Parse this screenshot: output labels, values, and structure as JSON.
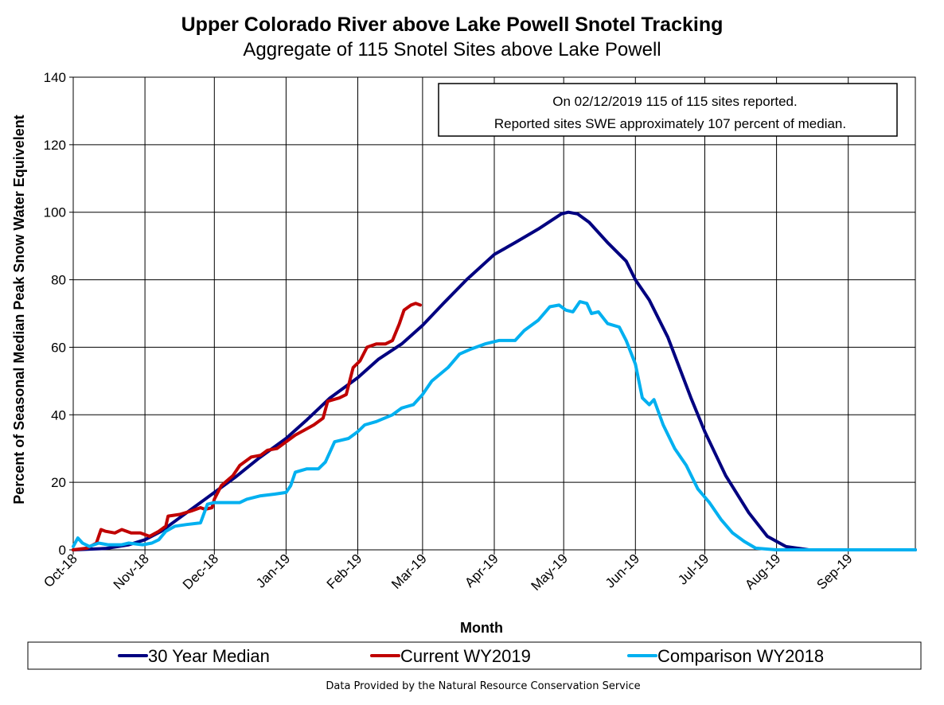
{
  "chart_data": {
    "type": "line",
    "title": "Upper Colorado River above Lake Powell Snotel Tracking",
    "subtitle": "Aggregate of 115 Snotel Sites above Lake Powell",
    "xlabel": "Month",
    "ylabel": "Percent of Seasonal Median Peak Snow Water Equivelent",
    "ylim": [
      0,
      140
    ],
    "yticks": [
      0,
      20,
      40,
      60,
      80,
      100,
      120,
      140
    ],
    "xlim": [
      "2018-10-01",
      "2019-09-30"
    ],
    "xtick_labels": [
      "Oct-18",
      "Nov-18",
      "Dec-18",
      "Jan-19",
      "Feb-19",
      "Mar-19",
      "Apr-19",
      "May-19",
      "Jun-19",
      "Jul-19",
      "Aug-19",
      "Sep-19"
    ],
    "xtick_dates": [
      "2018-10-01",
      "2018-11-01",
      "2018-12-01",
      "2019-01-01",
      "2019-02-01",
      "2019-03-01",
      "2019-04-01",
      "2019-05-01",
      "2019-06-01",
      "2019-07-01",
      "2019-08-01",
      "2019-09-01"
    ],
    "grid": true,
    "annotation": [
      "On 02/12/2019 115 of 115 sites reported.",
      "Reported sites SWE approximately  107 percent of median."
    ],
    "legend_position": "bottom",
    "series": [
      {
        "name": "30 Year Median",
        "color": "#000080",
        "points": [
          [
            "2018-10-01",
            0
          ],
          [
            "2018-10-15",
            0.4
          ],
          [
            "2018-10-25",
            1.5
          ],
          [
            "2018-11-01",
            3
          ],
          [
            "2018-11-08",
            5.5
          ],
          [
            "2018-11-15",
            9
          ],
          [
            "2018-11-22",
            12.5
          ],
          [
            "2018-12-01",
            17
          ],
          [
            "2018-12-10",
            21.5
          ],
          [
            "2018-12-20",
            27
          ],
          [
            "2019-01-01",
            33
          ],
          [
            "2019-01-10",
            38.5
          ],
          [
            "2019-01-20",
            45
          ],
          [
            "2019-02-01",
            51
          ],
          [
            "2019-02-10",
            56.5
          ],
          [
            "2019-02-20",
            61
          ],
          [
            "2019-03-01",
            66.5
          ],
          [
            "2019-03-10",
            73
          ],
          [
            "2019-03-20",
            80
          ],
          [
            "2019-04-01",
            87.5
          ],
          [
            "2019-04-10",
            91
          ],
          [
            "2019-04-20",
            95
          ],
          [
            "2019-04-30",
            99.5
          ],
          [
            "2019-05-03",
            100
          ],
          [
            "2019-05-07",
            99.5
          ],
          [
            "2019-05-12",
            97
          ],
          [
            "2019-05-20",
            91
          ],
          [
            "2019-05-28",
            85.5
          ],
          [
            "2019-06-01",
            80
          ],
          [
            "2019-06-07",
            74
          ],
          [
            "2019-06-15",
            63
          ],
          [
            "2019-06-25",
            45
          ],
          [
            "2019-07-01",
            35
          ],
          [
            "2019-07-10",
            22
          ],
          [
            "2019-07-20",
            11
          ],
          [
            "2019-07-28",
            4
          ],
          [
            "2019-08-05",
            1
          ],
          [
            "2019-08-15",
            0
          ],
          [
            "2019-09-30",
            0
          ]
        ]
      },
      {
        "name": "Current WY2019",
        "color": "#C00000",
        "points": [
          [
            "2018-10-01",
            0
          ],
          [
            "2018-10-07",
            0.5
          ],
          [
            "2018-10-11",
            2
          ],
          [
            "2018-10-13",
            6
          ],
          [
            "2018-10-15",
            5.5
          ],
          [
            "2018-10-19",
            5
          ],
          [
            "2018-10-22",
            6
          ],
          [
            "2018-10-26",
            5
          ],
          [
            "2018-10-30",
            5
          ],
          [
            "2018-11-03",
            4
          ],
          [
            "2018-11-07",
            5.5
          ],
          [
            "2018-11-10",
            7
          ],
          [
            "2018-11-11",
            10
          ],
          [
            "2018-11-16",
            10.5
          ],
          [
            "2018-11-21",
            11.5
          ],
          [
            "2018-11-25",
            12.5
          ],
          [
            "2018-11-27",
            12
          ],
          [
            "2018-11-30",
            12.5
          ],
          [
            "2018-12-01",
            15
          ],
          [
            "2018-12-04",
            19
          ],
          [
            "2018-12-09",
            22
          ],
          [
            "2018-12-12",
            25
          ],
          [
            "2018-12-17",
            27.5
          ],
          [
            "2018-12-21",
            28
          ],
          [
            "2018-12-24",
            29.5
          ],
          [
            "2018-12-28",
            30
          ],
          [
            "2019-01-01",
            32
          ],
          [
            "2019-01-05",
            34
          ],
          [
            "2019-01-09",
            35.5
          ],
          [
            "2019-01-13",
            37
          ],
          [
            "2019-01-17",
            39
          ],
          [
            "2019-01-19",
            44
          ],
          [
            "2019-01-24",
            45
          ],
          [
            "2019-01-27",
            46
          ],
          [
            "2019-01-30",
            54
          ],
          [
            "2019-02-02",
            56
          ],
          [
            "2019-02-05",
            60
          ],
          [
            "2019-02-09",
            61
          ],
          [
            "2019-02-13",
            61
          ],
          [
            "2019-02-16",
            62
          ],
          [
            "2019-02-19",
            67
          ],
          [
            "2019-02-21",
            71
          ],
          [
            "2019-02-24",
            72.5
          ],
          [
            "2019-02-26",
            73
          ],
          [
            "2019-02-28",
            72.5
          ]
        ]
      },
      {
        "name": "Comparison WY2018",
        "color": "#00B0F0",
        "points": [
          [
            "2018-10-01",
            1
          ],
          [
            "2018-10-03",
            3.5
          ],
          [
            "2018-10-05",
            2
          ],
          [
            "2018-10-08",
            1
          ],
          [
            "2018-10-12",
            2
          ],
          [
            "2018-10-16",
            1.5
          ],
          [
            "2018-10-22",
            1.5
          ],
          [
            "2018-10-25",
            2
          ],
          [
            "2018-10-31",
            1.5
          ],
          [
            "2018-11-04",
            2
          ],
          [
            "2018-11-07",
            3
          ],
          [
            "2018-11-10",
            5.5
          ],
          [
            "2018-11-14",
            7
          ],
          [
            "2018-11-19",
            7.5
          ],
          [
            "2018-11-25",
            8
          ],
          [
            "2018-11-28",
            13.5
          ],
          [
            "2018-12-01",
            14
          ],
          [
            "2018-12-07",
            14
          ],
          [
            "2018-12-12",
            14
          ],
          [
            "2018-12-15",
            15
          ],
          [
            "2018-12-21",
            16
          ],
          [
            "2018-12-27",
            16.5
          ],
          [
            "2019-01-01",
            17
          ],
          [
            "2019-01-03",
            19
          ],
          [
            "2019-01-05",
            23
          ],
          [
            "2019-01-10",
            24
          ],
          [
            "2019-01-15",
            24
          ],
          [
            "2019-01-18",
            26
          ],
          [
            "2019-01-22",
            32
          ],
          [
            "2019-01-28",
            33
          ],
          [
            "2019-02-01",
            35
          ],
          [
            "2019-02-04",
            37
          ],
          [
            "2019-02-09",
            38
          ],
          [
            "2019-02-16",
            40
          ],
          [
            "2019-02-20",
            42
          ],
          [
            "2019-02-25",
            43
          ],
          [
            "2019-03-01",
            46
          ],
          [
            "2019-03-05",
            50
          ],
          [
            "2019-03-12",
            54
          ],
          [
            "2019-03-17",
            58
          ],
          [
            "2019-03-22",
            59.5
          ],
          [
            "2019-03-28",
            61
          ],
          [
            "2019-04-03",
            62
          ],
          [
            "2019-04-10",
            62
          ],
          [
            "2019-04-14",
            65
          ],
          [
            "2019-04-20",
            68
          ],
          [
            "2019-04-25",
            72
          ],
          [
            "2019-04-29",
            72.5
          ],
          [
            "2019-05-02",
            71
          ],
          [
            "2019-05-05",
            70.5
          ],
          [
            "2019-05-08",
            73.5
          ],
          [
            "2019-05-11",
            73
          ],
          [
            "2019-05-13",
            70
          ],
          [
            "2019-05-16",
            70.5
          ],
          [
            "2019-05-20",
            67
          ],
          [
            "2019-05-25",
            66
          ],
          [
            "2019-05-28",
            62
          ],
          [
            "2019-06-01",
            55
          ],
          [
            "2019-06-04",
            45
          ],
          [
            "2019-06-07",
            43
          ],
          [
            "2019-06-09",
            44.5
          ],
          [
            "2019-06-13",
            37
          ],
          [
            "2019-06-18",
            30
          ],
          [
            "2019-06-23",
            25
          ],
          [
            "2019-06-28",
            18
          ],
          [
            "2019-07-03",
            14
          ],
          [
            "2019-07-08",
            9
          ],
          [
            "2019-07-13",
            5
          ],
          [
            "2019-07-18",
            2.5
          ],
          [
            "2019-07-23",
            0.5
          ],
          [
            "2019-08-01",
            0
          ],
          [
            "2019-09-30",
            0
          ]
        ]
      }
    ]
  },
  "footer": "Data Provided by the Natural Resource Conservation Service"
}
